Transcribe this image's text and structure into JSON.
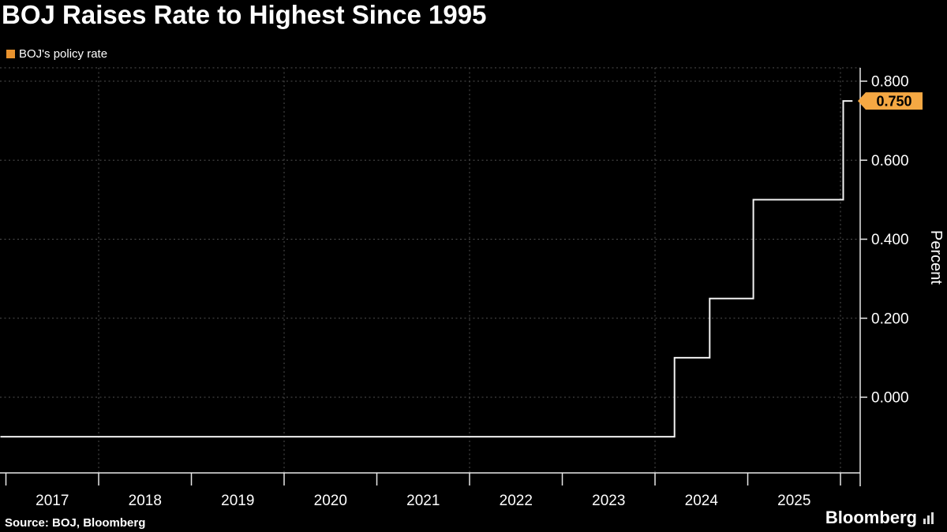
{
  "title": "BOJ Raises Rate to Highest Since 1995",
  "legend": {
    "label": "BOJ's policy rate",
    "swatch_color": "#E8922E"
  },
  "source": "Source: BOJ, Bloomberg",
  "branding": {
    "logo_text": "Bloomberg"
  },
  "colors": {
    "background": "#000000",
    "text": "#FFFFFF",
    "grid": "#4F4F4F",
    "axis": "#E8E8E8",
    "line": "#F2F2F2",
    "badge": "#F5A843"
  },
  "chart_data": {
    "type": "line",
    "subtype": "step",
    "title": "BOJ Raises Rate to Highest Since 1995",
    "ylabel": "Percent",
    "xlabel": "",
    "grid": "dotted",
    "legend_position": "top-left",
    "xlim": [
      2016.94,
      2026.26
    ],
    "ylim": [
      -0.19,
      0.835
    ],
    "y_ticks": [
      {
        "value": 0.8,
        "label": "0.800"
      },
      {
        "value": 0.6,
        "label": "0.600"
      },
      {
        "value": 0.4,
        "label": "0.400"
      },
      {
        "value": 0.2,
        "label": "0.200"
      },
      {
        "value": 0.0,
        "label": "0.000"
      }
    ],
    "x_labels": [
      "2017",
      "2018",
      "2019",
      "2020",
      "2021",
      "2022",
      "2023",
      "2024",
      "2025"
    ],
    "x_ticks_years": [
      2017,
      2018,
      2019,
      2020,
      2021,
      2022,
      2023,
      2024,
      2025,
      2026
    ],
    "v_gridline_years": [
      2018,
      2020,
      2022,
      2024,
      2026
    ],
    "series": [
      {
        "name": "BOJ's policy rate",
        "color": "#F2F2F2",
        "step_points": [
          {
            "x": 2016.94,
            "y": -0.1
          },
          {
            "x": 2024.21,
            "y": -0.1
          },
          {
            "x": 2024.21,
            "y": 0.1
          },
          {
            "x": 2024.59,
            "y": 0.1
          },
          {
            "x": 2024.59,
            "y": 0.25
          },
          {
            "x": 2025.06,
            "y": 0.25
          },
          {
            "x": 2025.06,
            "y": 0.5
          },
          {
            "x": 2026.03,
            "y": 0.5
          },
          {
            "x": 2026.03,
            "y": 0.75
          },
          {
            "x": 2026.13,
            "y": 0.75
          }
        ]
      }
    ],
    "current_value": {
      "label": "0.750",
      "value": 0.75
    }
  }
}
